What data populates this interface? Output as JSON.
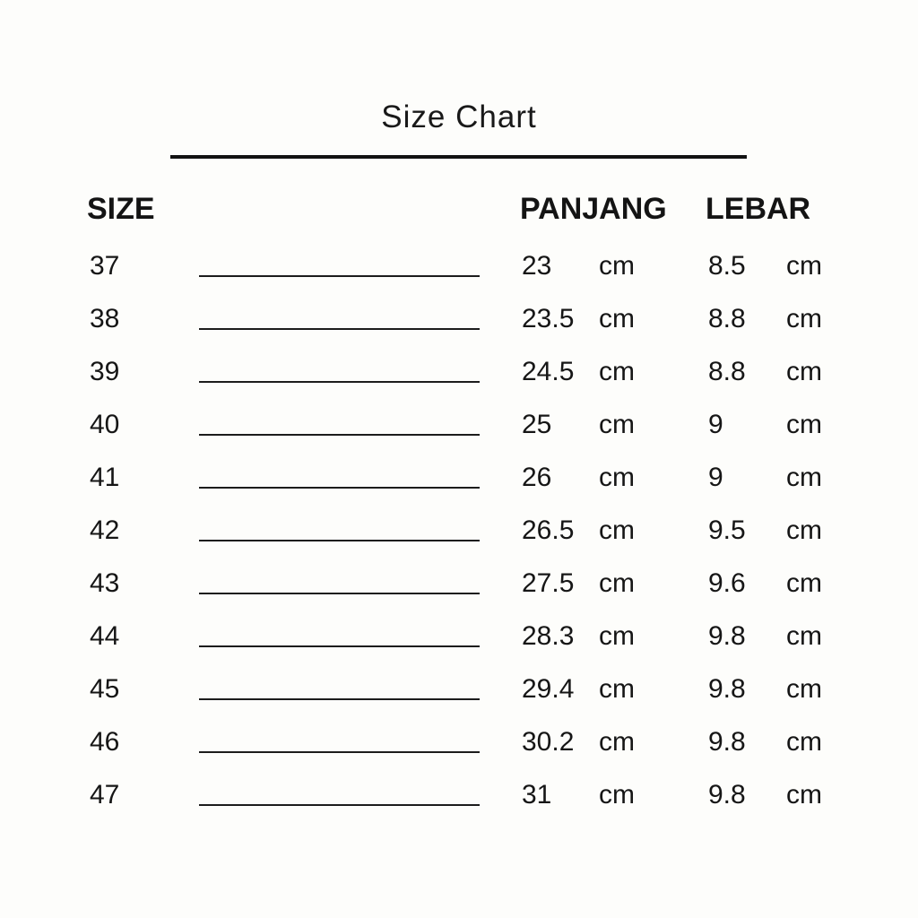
{
  "page": {
    "title": "Size Chart",
    "background_color": "#fdfdfb",
    "text_color": "#141414"
  },
  "table": {
    "headers": {
      "size": "SIZE",
      "panjang": "PANJANG",
      "lebar": "LEBAR"
    },
    "unit": "cm",
    "rows": [
      {
        "size": "37",
        "panjang": "23",
        "lebar": "8.5"
      },
      {
        "size": "38",
        "panjang": "23.5",
        "lebar": "8.8"
      },
      {
        "size": "39",
        "panjang": "24.5",
        "lebar": "8.8"
      },
      {
        "size": "40",
        "panjang": "25",
        "lebar": "9"
      },
      {
        "size": "41",
        "panjang": "26",
        "lebar": "9"
      },
      {
        "size": "42",
        "panjang": "26.5",
        "lebar": "9.5"
      },
      {
        "size": "43",
        "panjang": "27.5",
        "lebar": "9.6"
      },
      {
        "size": "44",
        "panjang": "28.3",
        "lebar": "9.8"
      },
      {
        "size": "45",
        "panjang": "29.4",
        "lebar": "9.8"
      },
      {
        "size": "46",
        "panjang": "30.2",
        "lebar": "9.8"
      },
      {
        "size": "47",
        "panjang": "31",
        "lebar": "9.8"
      }
    ]
  },
  "chart_data": {
    "type": "table",
    "title": "Size Chart",
    "columns": [
      "SIZE",
      "PANJANG (cm)",
      "LEBAR (cm)"
    ],
    "rows": [
      [
        37,
        23,
        8.5
      ],
      [
        38,
        23.5,
        8.8
      ],
      [
        39,
        24.5,
        8.8
      ],
      [
        40,
        25,
        9
      ],
      [
        41,
        26,
        9
      ],
      [
        42,
        26.5,
        9.5
      ],
      [
        43,
        27.5,
        9.6
      ],
      [
        44,
        28.3,
        9.8
      ],
      [
        45,
        29.4,
        9.8
      ],
      [
        46,
        30.2,
        9.8
      ],
      [
        47,
        31,
        9.8
      ]
    ]
  }
}
